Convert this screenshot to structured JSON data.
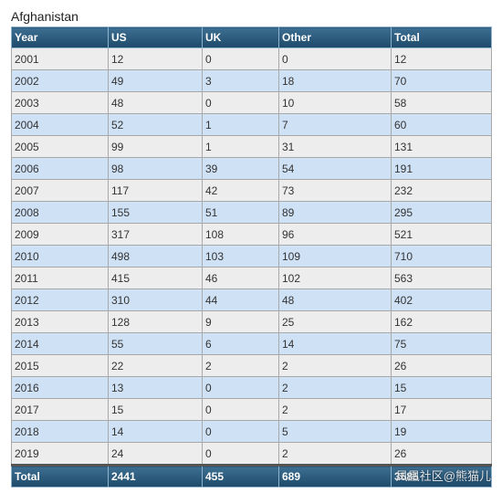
{
  "caption": "Afghanistan",
  "table": {
    "headers": [
      "Year",
      "US",
      "UK",
      "Other",
      "Total"
    ],
    "rows": [
      [
        "2001",
        "12",
        "0",
        "0",
        "12"
      ],
      [
        "2002",
        "49",
        "3",
        "18",
        "70"
      ],
      [
        "2003",
        "48",
        "0",
        "10",
        "58"
      ],
      [
        "2004",
        "52",
        "1",
        "7",
        "60"
      ],
      [
        "2005",
        "99",
        "1",
        "31",
        "131"
      ],
      [
        "2006",
        "98",
        "39",
        "54",
        "191"
      ],
      [
        "2007",
        "117",
        "42",
        "73",
        "232"
      ],
      [
        "2008",
        "155",
        "51",
        "89",
        "295"
      ],
      [
        "2009",
        "317",
        "108",
        "96",
        "521"
      ],
      [
        "2010",
        "498",
        "103",
        "109",
        "710"
      ],
      [
        "2011",
        "415",
        "46",
        "102",
        "563"
      ],
      [
        "2012",
        "310",
        "44",
        "48",
        "402"
      ],
      [
        "2013",
        "128",
        "9",
        "25",
        "162"
      ],
      [
        "2014",
        "55",
        "6",
        "14",
        "75"
      ],
      [
        "2015",
        "22",
        "2",
        "2",
        "26"
      ],
      [
        "2016",
        "13",
        "0",
        "2",
        "15"
      ],
      [
        "2017",
        "15",
        "0",
        "2",
        "17"
      ],
      [
        "2018",
        "14",
        "0",
        "5",
        "19"
      ],
      [
        "2019",
        "24",
        "0",
        "2",
        "26"
      ]
    ],
    "footer": [
      "Total",
      "2441",
      "455",
      "689",
      "3585"
    ]
  },
  "watermark": "凤凰社区@熊猫儿",
  "colors": {
    "header_bg": "#2a5a7c",
    "row_odd": "#ededed",
    "row_even": "#cfe1f5"
  }
}
